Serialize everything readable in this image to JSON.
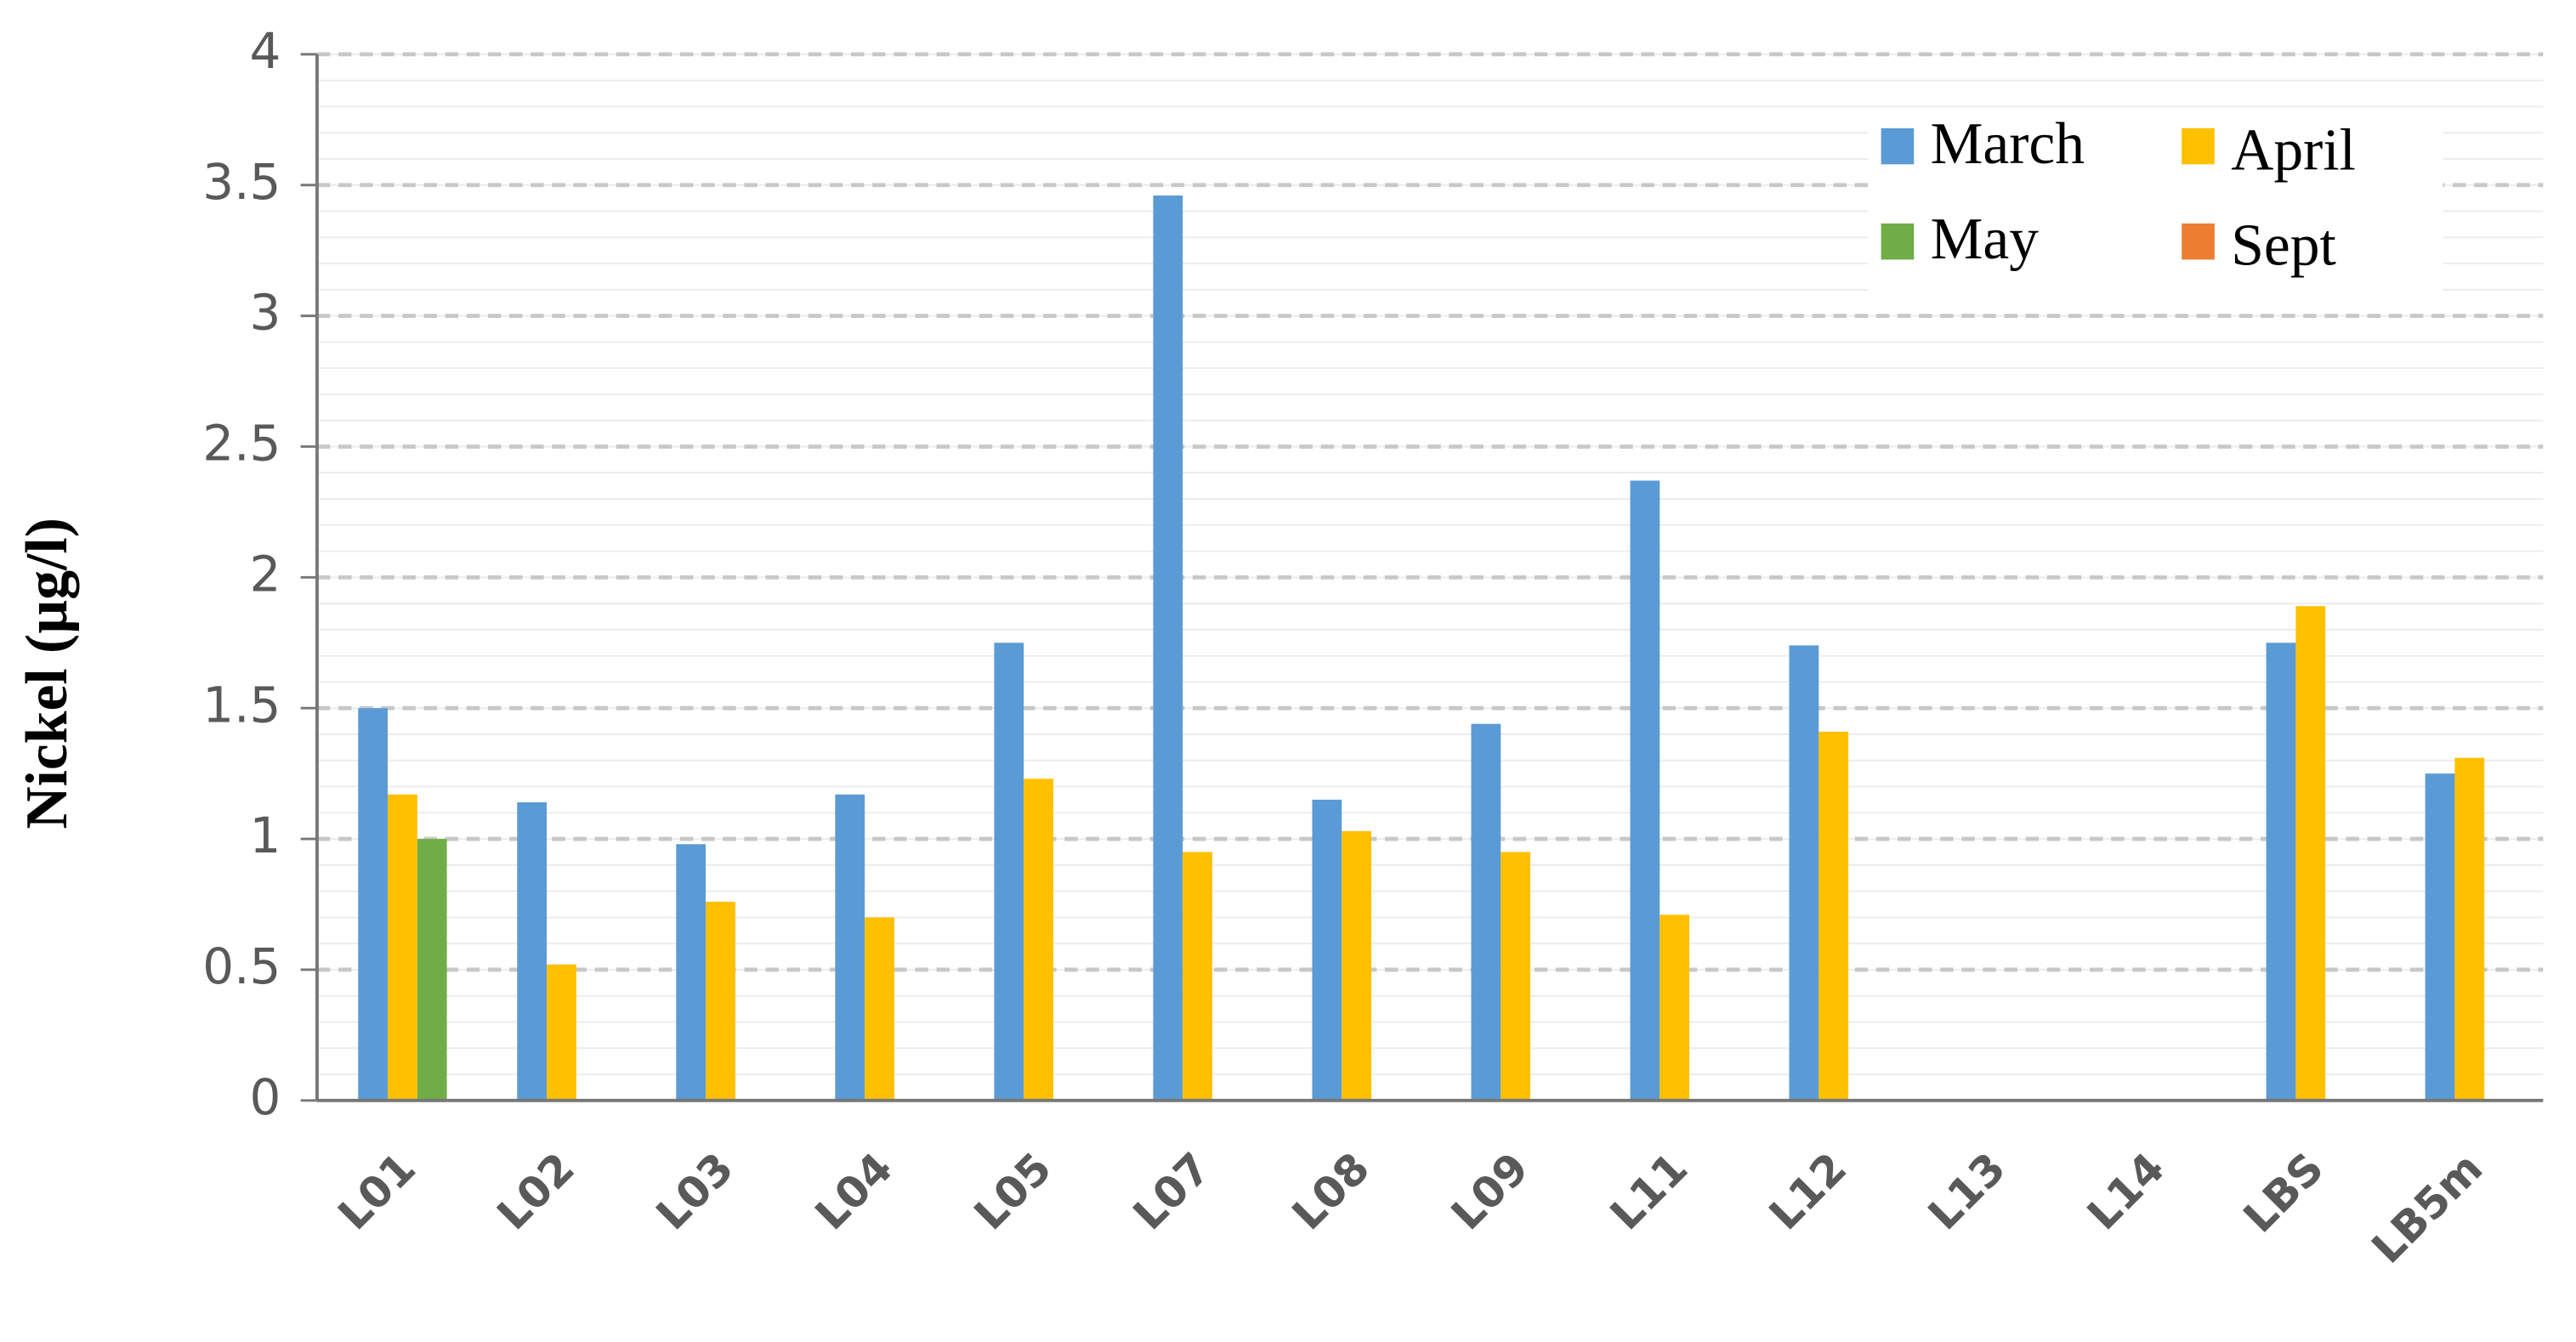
{
  "chart_data": {
    "type": "bar",
    "y_label": "Nickel (µg/l)",
    "categories": [
      "L01",
      "L02",
      "L03",
      "L04",
      "L05",
      "L07",
      "L08",
      "L09",
      "L11",
      "L12",
      "L13",
      "L14",
      "LBS",
      "LB5m"
    ],
    "series": [
      {
        "name": "March",
        "color": "#5b9bd5",
        "values": [
          1.5,
          1.14,
          0.98,
          1.17,
          1.75,
          3.46,
          1.15,
          1.44,
          2.37,
          1.74,
          null,
          null,
          1.75,
          1.25
        ]
      },
      {
        "name": "April",
        "color": "#ffc000",
        "values": [
          1.17,
          0.52,
          0.76,
          0.7,
          1.23,
          0.95,
          1.03,
          0.95,
          0.71,
          1.41,
          null,
          null,
          1.89,
          1.31
        ]
      },
      {
        "name": "May",
        "color": "#70ad47",
        "values": [
          1.0,
          null,
          null,
          null,
          null,
          null,
          null,
          null,
          null,
          null,
          null,
          null,
          null,
          null
        ]
      },
      {
        "name": "Sept",
        "color": "#ed7d31",
        "values": [
          null,
          null,
          null,
          null,
          null,
          null,
          null,
          null,
          null,
          null,
          null,
          null,
          null,
          null
        ]
      }
    ],
    "ylim": [
      0,
      4
    ],
    "yticks": [
      0,
      0.5,
      1,
      1.5,
      2,
      2.5,
      3,
      3.5,
      4
    ],
    "grid": true,
    "legend": "top-right"
  }
}
